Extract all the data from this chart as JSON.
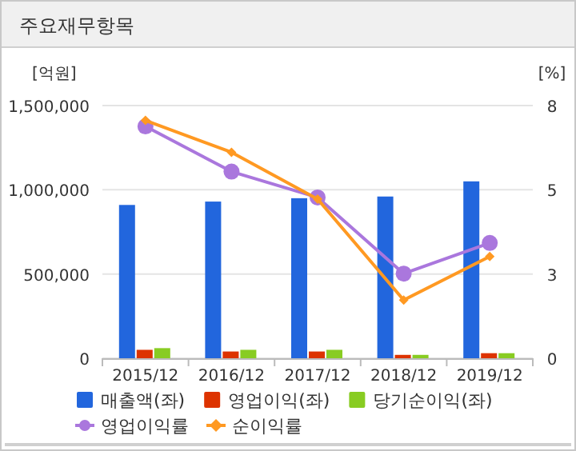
{
  "chart_data": {
    "type": "bar",
    "title": "주요재무항목",
    "ylabel": "[억원]",
    "y2label": "[%]",
    "categories": [
      "2015/12",
      "2016/12",
      "2017/12",
      "2018/12",
      "2019/12"
    ],
    "ylim": [
      0,
      1500000
    ],
    "yticks": [
      {
        "value": 0,
        "label": "0"
      },
      {
        "value": 500000,
        "label": "500,000"
      },
      {
        "value": 1000000,
        "label": "1,000,000"
      },
      {
        "value": 1500000,
        "label": "1,500,000"
      }
    ],
    "y2lim": [
      0,
      8
    ],
    "y2ticks": [
      0,
      {
        "value": 2.667,
        "label": "3"
      },
      {
        "value": 5.333,
        "label": "5"
      },
      8
    ],
    "grid": "y",
    "legend": "bottom",
    "series": [
      {
        "name": "매출액(좌)",
        "color": "#2266dd",
        "values": [
          910000,
          930000,
          950000,
          960000,
          1050000
        ]
      },
      {
        "name": "영업이익(좌)",
        "color": "#dd3300",
        "values": [
          50000,
          40000,
          40000,
          20000,
          30000
        ]
      },
      {
        "name": "당기순이익(좌)",
        "color": "#88cc22",
        "values": [
          60000,
          50000,
          50000,
          20000,
          30000
        ]
      },
      {
        "name": "영업이익률",
        "type": "line",
        "axis": "y2",
        "marker": "circle",
        "color": "#aa77dd",
        "values": [
          7.34,
          5.91,
          5.09,
          2.68,
          3.65
        ]
      },
      {
        "name": "순이익률",
        "type": "line",
        "axis": "y2",
        "marker": "diamond",
        "color": "#ff9922",
        "values": [
          7.53,
          6.52,
          5.04,
          1.84,
          3.22
        ]
      }
    ]
  }
}
